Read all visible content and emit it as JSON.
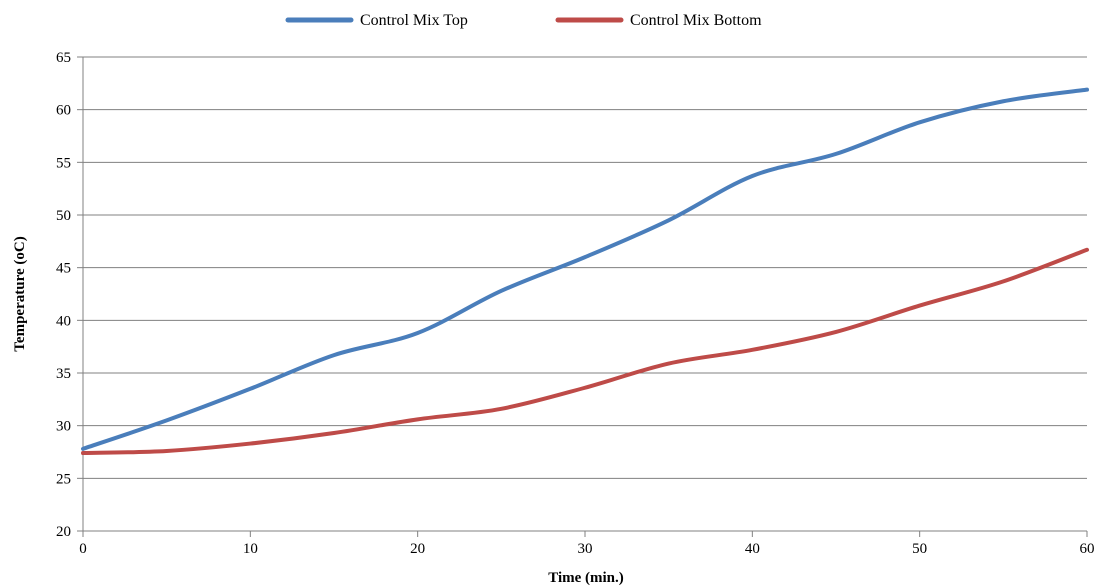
{
  "chart_data": {
    "type": "line",
    "title": "",
    "xlabel": "Time (min.)",
    "ylabel": "Temperature (oC)",
    "xlim": [
      0,
      60
    ],
    "ylim": [
      20,
      65
    ],
    "xticks": [
      0,
      10,
      20,
      30,
      40,
      50,
      60
    ],
    "yticks": [
      20,
      25,
      30,
      35,
      40,
      45,
      50,
      55,
      60,
      65
    ],
    "grid": true,
    "legend_position": "top",
    "x": [
      0,
      5,
      10,
      15,
      20,
      25,
      30,
      35,
      40,
      45,
      50,
      55,
      60
    ],
    "series": [
      {
        "name": "Control Mix Top",
        "color": "#4a7ebb",
        "values": [
          27.8,
          30.5,
          33.5,
          36.7,
          38.8,
          42.8,
          46.0,
          49.5,
          53.7,
          55.8,
          58.8,
          60.8,
          61.9
        ]
      },
      {
        "name": "Control Mix Bottom",
        "color": "#be4b48",
        "values": [
          27.4,
          27.6,
          28.3,
          29.3,
          30.6,
          31.6,
          33.6,
          35.9,
          37.2,
          38.9,
          41.4,
          43.7,
          46.7
        ]
      }
    ]
  }
}
